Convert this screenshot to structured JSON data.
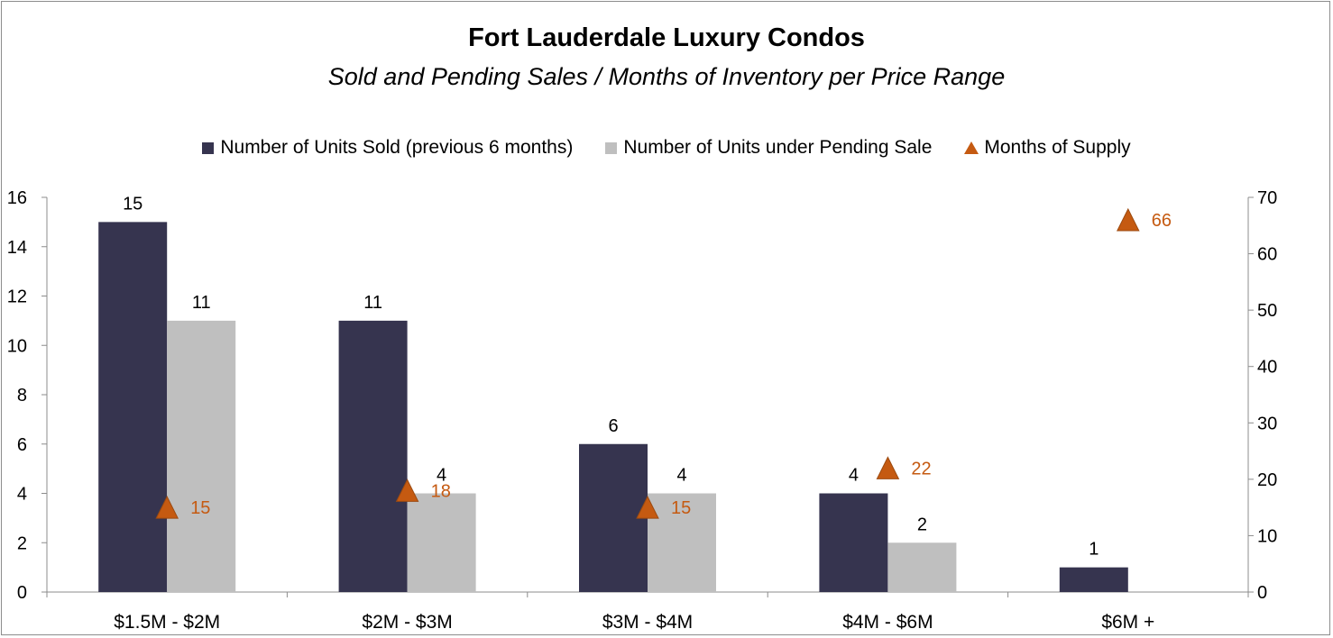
{
  "chart_data": {
    "type": "bar",
    "title": "Fort Lauderdale Luxury Condos",
    "subtitle": "Sold and Pending Sales / Months of Inventory per Price Range",
    "categories": [
      "$1.5M - $2M",
      "$2M - $3M",
      "$3M - $4M",
      "$4M - $6M",
      "$6M +"
    ],
    "series": [
      {
        "name": "Number of Units Sold (previous 6 months)",
        "type": "bar",
        "axis": "left",
        "values": [
          15,
          11,
          6,
          4,
          1
        ],
        "color": "#36344f"
      },
      {
        "name": "Number of Units under Pending Sale",
        "type": "bar",
        "axis": "left",
        "values": [
          11,
          4,
          4,
          2,
          null
        ],
        "color": "#bfbfbf"
      },
      {
        "name": "Months of Supply",
        "type": "scatter",
        "marker": "triangle",
        "axis": "right",
        "values": [
          15,
          18,
          15,
          22,
          66
        ],
        "color": "#c55a11"
      }
    ],
    "ylim_left": [
      0,
      16
    ],
    "yticks_left": [
      0,
      2,
      4,
      6,
      8,
      10,
      12,
      14,
      16
    ],
    "ylim_right": [
      0,
      70
    ],
    "yticks_right": [
      0,
      10,
      20,
      30,
      40,
      50,
      60,
      70
    ],
    "grid": false,
    "legend_position": "top"
  }
}
